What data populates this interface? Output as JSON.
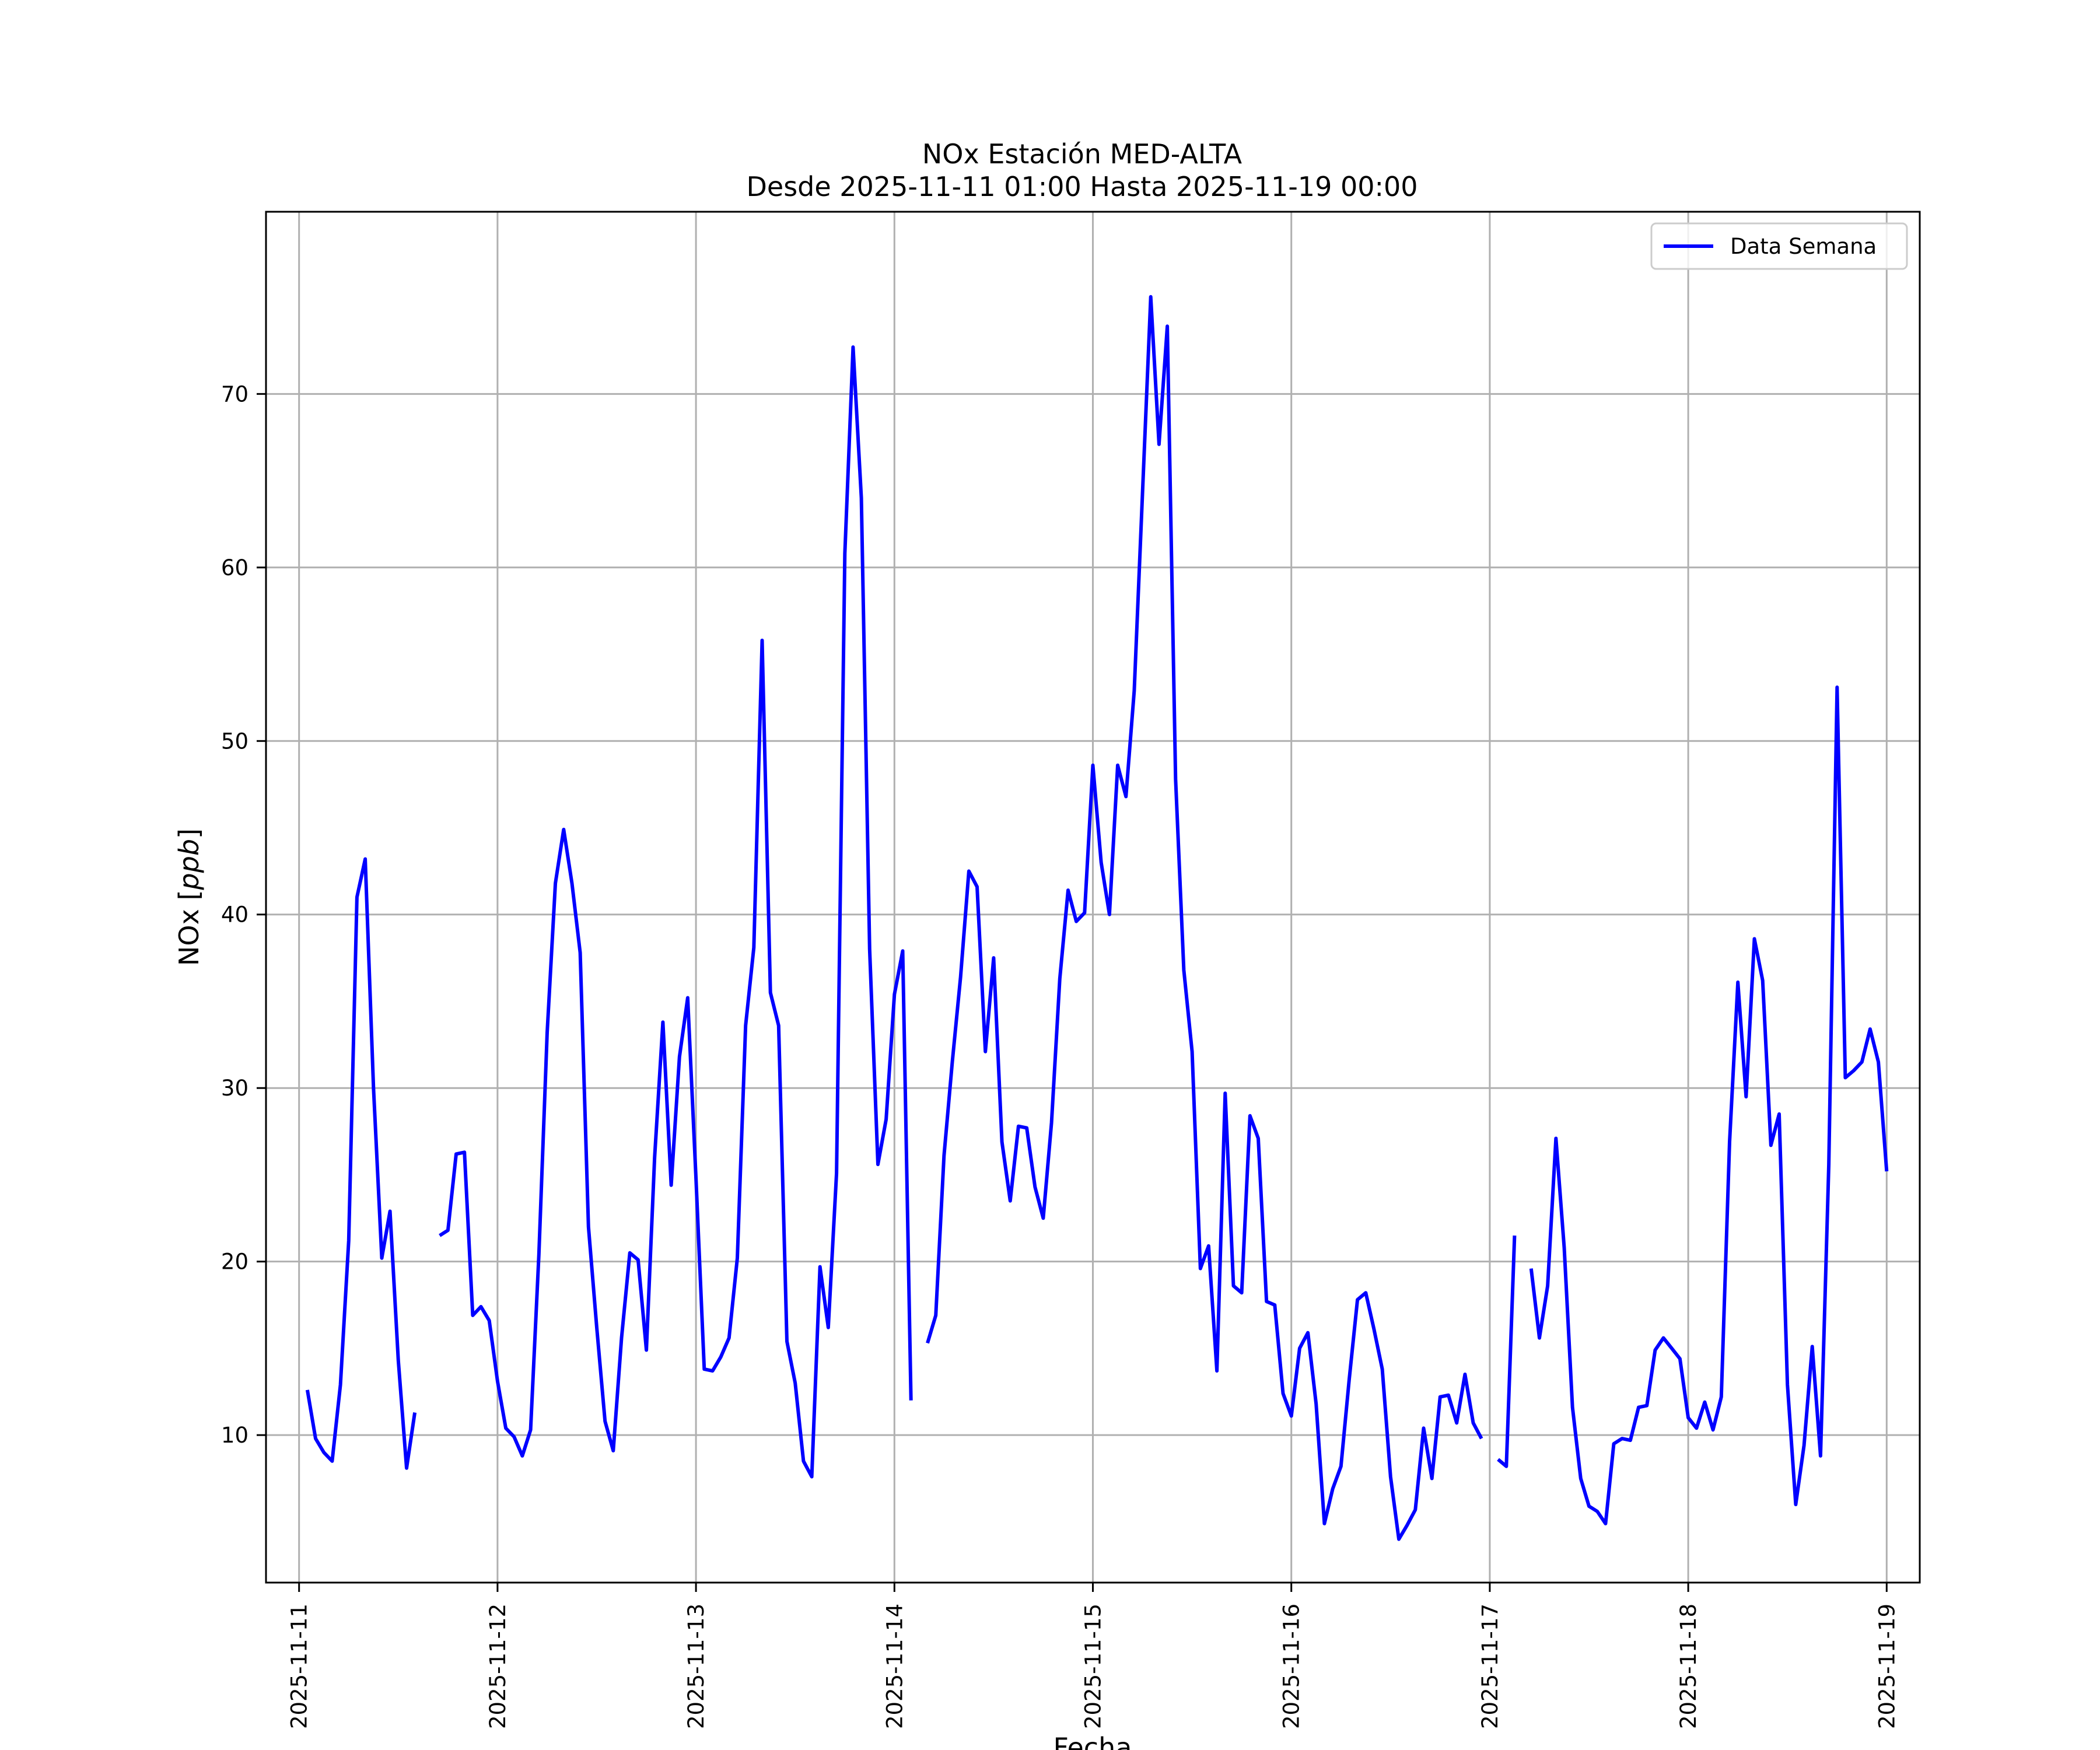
{
  "chart_data": {
    "type": "line",
    "title": "NOx Estación MED-ALTA",
    "subtitle": "Desde 2025-11-11 01:00 Hasta 2025-11-19 00:00",
    "xlabel": "Fecha",
    "ylabel": "NOx [ppb]",
    "ylabel_parts": {
      "prefix": "NOx [",
      "unit": "ppb",
      "suffix": "]"
    },
    "xlim": [
      "2025-11-10 20:00",
      "2025-11-19 04:00"
    ],
    "ylim": [
      1.5,
      80.5
    ],
    "grid": true,
    "legend_position": "top-right",
    "x_ticks": [
      "2025-11-11",
      "2025-11-12",
      "2025-11-13",
      "2025-11-14",
      "2025-11-15",
      "2025-11-16",
      "2025-11-17",
      "2025-11-18",
      "2025-11-19"
    ],
    "y_ticks": [
      10,
      20,
      30,
      40,
      50,
      60,
      70
    ],
    "colors": {
      "series": "#0000ff",
      "grid": "#b0b0b0"
    },
    "series": [
      {
        "name": "Data Semana",
        "start": "2025-11-11 01:00",
        "interval_hours": 1,
        "values": [
          12.6,
          9.8,
          9.0,
          8.5,
          12.9,
          21.2,
          41.0,
          43.2,
          30.0,
          20.2,
          22.9,
          14.3,
          8.1,
          11.3,
          null,
          null,
          21.5,
          21.8,
          26.2,
          26.3,
          16.9,
          17.4,
          16.6,
          13.1,
          10.4,
          9.9,
          8.8,
          10.3,
          20.4,
          33.2,
          41.8,
          44.9,
          41.8,
          37.8,
          22.0,
          16.2,
          10.8,
          9.1,
          15.6,
          20.5,
          20.1,
          14.9,
          26.0,
          33.8,
          24.4,
          31.8,
          35.2,
          24.8,
          13.8,
          13.7,
          14.5,
          15.6,
          20.2,
          33.6,
          38.1,
          55.8,
          35.5,
          33.6,
          15.4,
          13.0,
          8.5,
          7.6,
          19.7,
          16.2,
          25.1,
          60.8,
          72.7,
          64.0,
          38.0,
          25.6,
          28.2,
          35.4,
          37.9,
          12.0,
          null,
          15.3,
          16.9,
          26.1,
          31.5,
          36.4,
          42.5,
          41.6,
          32.1,
          37.5,
          26.9,
          23.5,
          27.8,
          27.7,
          24.3,
          22.5,
          28.0,
          36.3,
          41.4,
          39.6,
          40.1,
          48.6,
          43.0,
          40.0,
          48.6,
          46.8,
          52.9,
          64.3,
          75.6,
          67.1,
          73.9,
          47.8,
          36.8,
          32.1,
          19.6,
          20.9,
          13.7,
          29.7,
          18.6,
          18.2,
          28.4,
          27.1,
          17.7,
          17.5,
          12.4,
          11.1,
          15.0,
          15.9,
          11.8,
          4.9,
          6.9,
          8.2,
          13.2,
          17.8,
          18.2,
          16.1,
          13.8,
          7.6,
          4.0,
          4.8,
          5.7,
          10.4,
          7.5,
          12.2,
          12.3,
          10.7,
          13.5,
          10.7,
          9.8,
          null,
          8.6,
          8.2,
          21.5,
          null,
          19.6,
          15.6,
          18.6,
          27.1,
          20.8,
          11.6,
          7.5,
          5.9,
          5.6,
          4.9,
          9.5,
          9.8,
          9.7,
          11.6,
          11.7,
          14.9,
          15.6,
          15.0,
          14.4,
          11.0,
          10.4,
          11.9,
          10.3,
          12.2,
          26.9,
          36.1,
          29.5,
          38.6,
          36.2,
          26.7,
          28.5,
          12.9,
          6.0,
          9.4,
          15.1,
          8.8,
          25.6,
          53.1,
          30.6,
          31.0,
          31.5,
          33.4,
          31.5,
          25.2
        ]
      }
    ]
  }
}
